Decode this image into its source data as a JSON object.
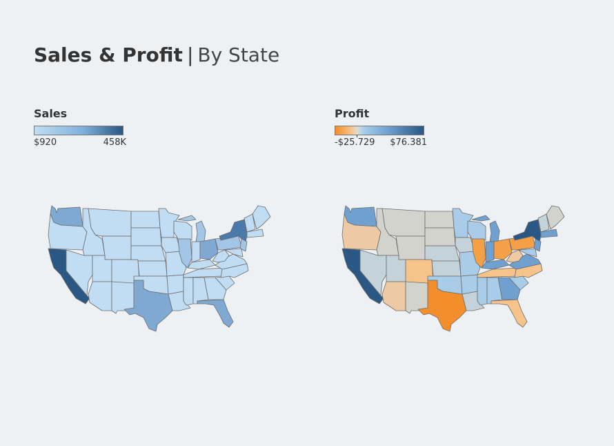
{
  "header": {
    "title_bold": "Sales & Profit",
    "separator": "|",
    "title_light": "By State"
  },
  "sales_legend": {
    "title": "Sales",
    "min_label": "$920",
    "max_label": "458K",
    "color_low": "#c0ddf3",
    "color_high": "#2a5783"
  },
  "profit_legend": {
    "title": "Profit",
    "min_label": "-$25.729",
    "max_label": "$76.381",
    "color_negative": "#f28e2b",
    "color_neutral": "#dcdcd4",
    "color_positive": "#2a5783"
  },
  "colors": {
    "page_bg": "#eef1f4",
    "state_border": "#6b6b6b",
    "light_orange": "#f6c38a",
    "tan": "#edc9a4",
    "mid_blue": "#6fa0d0",
    "pale_gray_blue": "#c4d3d9",
    "pale_gray": "#d2d3cd"
  }
}
